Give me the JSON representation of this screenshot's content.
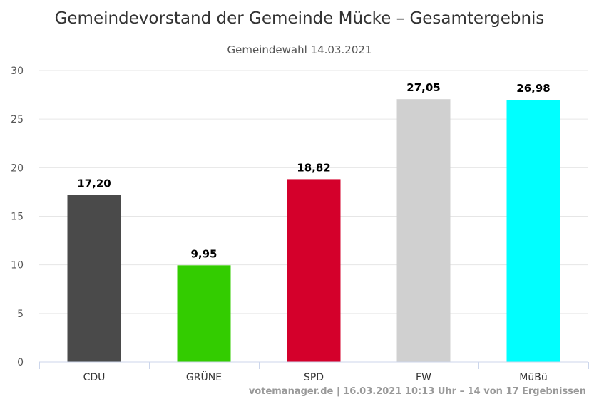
{
  "chart_data": {
    "type": "bar",
    "title": "Gemeindevorstand der Gemeinde Mücke – Gesamtergebnis",
    "subtitle": "Gemeindewahl 14.03.2021",
    "categories": [
      "CDU",
      "GRÜNE",
      "SPD",
      "FW",
      "MüBü"
    ],
    "values": [
      17.2,
      9.95,
      18.82,
      27.05,
      26.98
    ],
    "value_labels": [
      "17,20",
      "9,95",
      "18,82",
      "27,05",
      "26,98"
    ],
    "colors": [
      "#4a4a4a",
      "#33cc00",
      "#d4002b",
      "#d0d0d0",
      "#00ffff"
    ],
    "ylim": [
      0,
      30
    ],
    "yticks": [
      0,
      5,
      10,
      15,
      20,
      25,
      30
    ],
    "grid": true,
    "legend": false
  },
  "credits": "votemanager.de | 16.03.2021 10:13 Uhr – 14 von 17 Ergebnissen"
}
